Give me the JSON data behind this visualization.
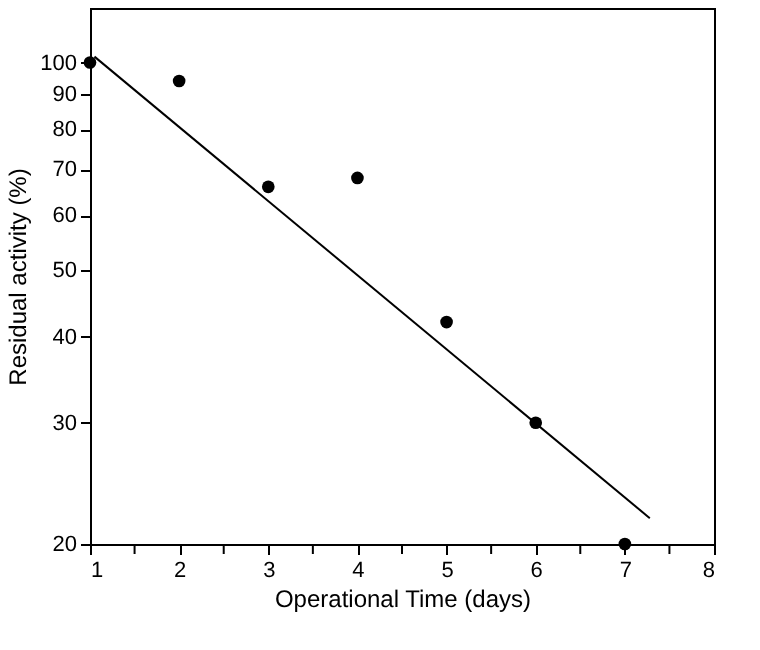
{
  "chart_data": {
    "type": "scatter",
    "xlabel": "Operational Time (days)",
    "ylabel": "Residual activity (%)",
    "x": [
      1,
      2,
      3,
      4,
      5,
      6,
      7
    ],
    "series": [
      {
        "color": "#000000",
        "marker": "circle",
        "values": [
          100,
          94,
          66,
          68,
          42,
          30,
          20
        ]
      },
      {
        "type": "line",
        "color": "#000000",
        "x": [
          1.05,
          7.28
        ],
        "values": [
          102,
          21.8
        ]
      }
    ],
    "log": "y",
    "xlim": [
      1,
      8
    ],
    "ylim": [
      20,
      120
    ],
    "xticks": [
      1,
      {
        "value": 1.5,
        "label": null
      },
      2,
      {
        "value": 2.5,
        "label": null
      },
      3,
      {
        "value": 3.5,
        "label": null
      },
      4,
      {
        "value": 4.5,
        "label": null
      },
      5,
      {
        "value": 5.5,
        "label": null
      },
      6,
      {
        "value": 6.5,
        "label": null
      },
      7,
      {
        "value": 7.5,
        "label": null
      },
      8
    ],
    "yticks": [
      20,
      30,
      40,
      50,
      60,
      70,
      80,
      90,
      100
    ],
    "grid": false
  }
}
